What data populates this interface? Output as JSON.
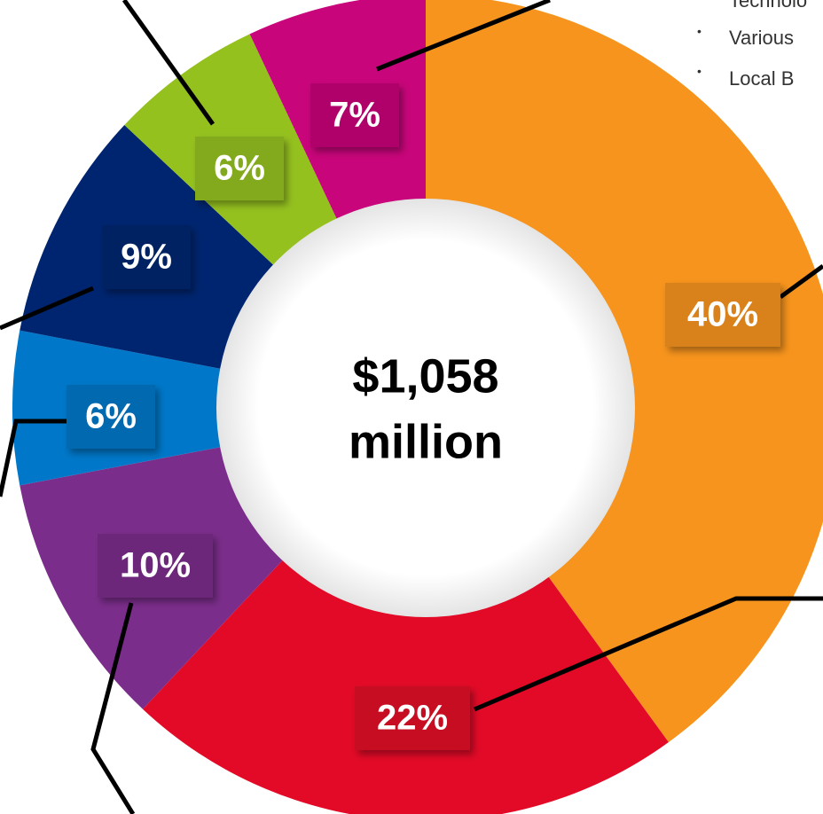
{
  "chart_data": {
    "type": "pie",
    "center_label": [
      "$1,058",
      "million"
    ],
    "legend_items": [
      "Technolo",
      "Various",
      "Local B"
    ],
    "values": [
      40,
      22,
      10,
      6,
      9,
      6,
      7
    ],
    "value_labels": [
      "40%",
      "22%",
      "10%",
      "6%",
      "9%",
      "6%",
      "7%"
    ],
    "colors": [
      "#f7941d",
      "#e20a27",
      "#7b2d8b",
      "#0077c8",
      "#002570",
      "#95c11f",
      "#c8057a"
    ]
  }
}
